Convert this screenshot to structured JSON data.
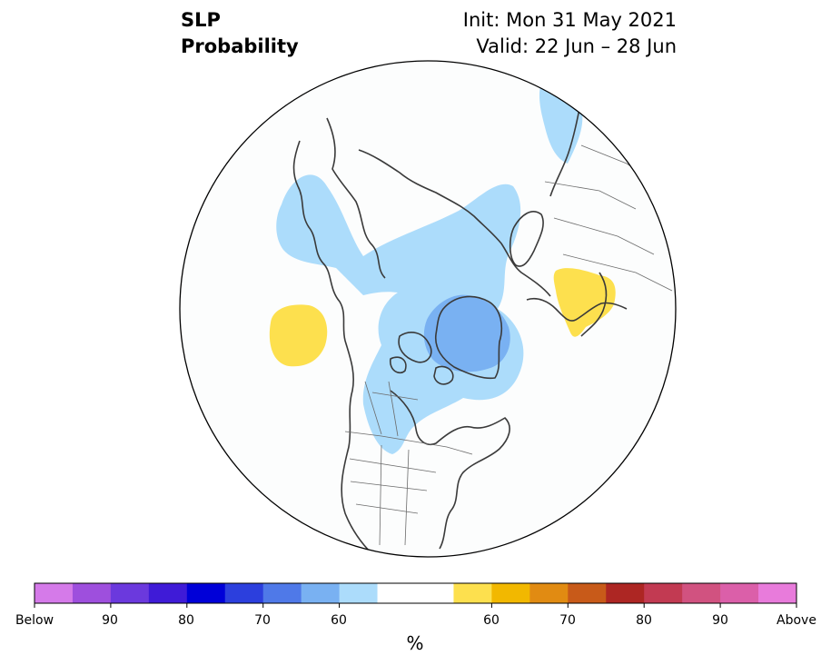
{
  "title": {
    "left_line1": "SLP",
    "left_line2": "Probability",
    "right_line1": "Init: Mon 31 May 2021",
    "right_line2": "Valid: 22 Jun – 28 Jun"
  },
  "colorbar": {
    "unit": "%",
    "labels": [
      "Below",
      "90",
      "80",
      "70",
      "60",
      "60",
      "70",
      "80",
      "90",
      "Above"
    ],
    "colors": [
      "#d57ae9",
      "#9e4fdd",
      "#6b39dd",
      "#3f1bd7",
      "#0000d8",
      "#2c3fdd",
      "#4f79e8",
      "#79b1f2",
      "#acdcfb",
      "#ffffff",
      "#ffffff",
      "#fde04e",
      "#f2b800",
      "#e18b12",
      "#c85a19",
      "#ad2623",
      "#c23a52",
      "#d15280",
      "#db5fa9",
      "#e87bdb"
    ]
  },
  "map": {
    "projection": "north-polar-stereographic",
    "features": {
      "below_normal_light": "#acdcfb",
      "below_normal_medium": "#79b1f2",
      "above_normal_light": "#fde04e",
      "coastline": "#3a3a3a"
    }
  }
}
